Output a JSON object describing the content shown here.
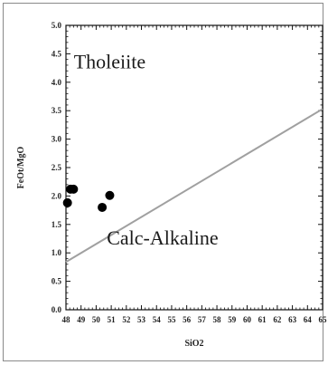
{
  "chart_data": {
    "type": "scatter",
    "title": "",
    "xlabel": "SiO2",
    "ylabel": "FeOt/MgO",
    "xlim": [
      48,
      65
    ],
    "ylim": [
      0.0,
      5.0
    ],
    "xticks": [
      "48",
      "49",
      "50",
      "51",
      "52",
      "53",
      "54",
      "55",
      "56",
      "57",
      "58",
      "59",
      "60",
      "61",
      "62",
      "63",
      "64",
      "65"
    ],
    "yticks": [
      "0.0",
      "0.5",
      "1.0",
      "1.5",
      "2.0",
      "2.5",
      "3.0",
      "3.5",
      "4.0",
      "4.5",
      "5.0"
    ],
    "grid": false,
    "series": [
      {
        "x": [
          48.1,
          48.3,
          48.5,
          50.4,
          50.9
        ],
        "y": [
          1.88,
          2.12,
          2.12,
          1.8,
          2.01
        ],
        "color": "#000000"
      }
    ],
    "divider_line": {
      "x": [
        48,
        65
      ],
      "y": [
        0.84,
        3.53
      ],
      "color": "#a0a0a0"
    },
    "annotations": [
      {
        "text": "Tholeiite",
        "x": 50.9,
        "y": 4.24
      },
      {
        "text": "Calc-Alkaline",
        "x": 54.4,
        "y": 1.15
      }
    ],
    "colors": {
      "frame": "#8a8a8a",
      "axis": "#111111",
      "marker": "#000000",
      "divider": "#a0a0a0"
    }
  }
}
